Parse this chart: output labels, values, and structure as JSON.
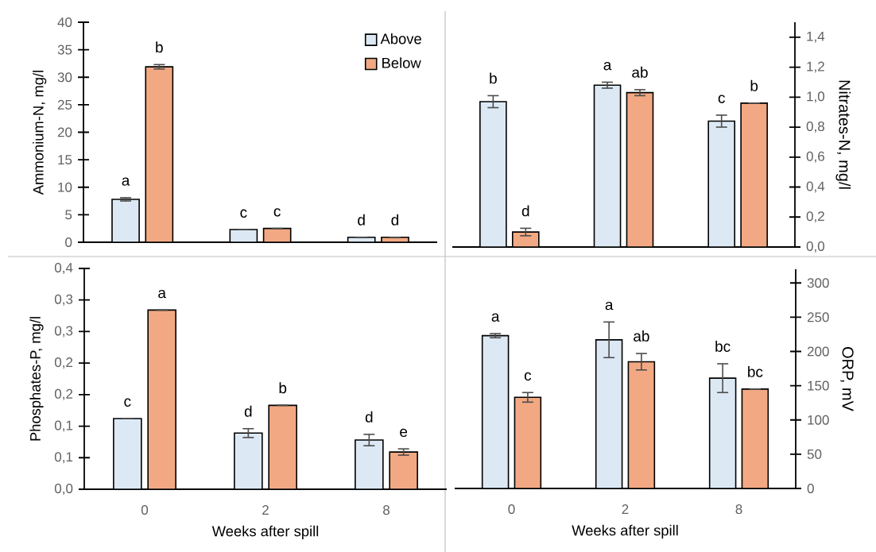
{
  "chart_data": [
    {
      "type": "bar",
      "categories": [
        "0",
        "2",
        "8"
      ],
      "ylabel": "Ammonium-N, mg/l",
      "ylim": [
        0,
        40
      ],
      "yticks": [
        0,
        5,
        10,
        15,
        20,
        25,
        30,
        35,
        40
      ],
      "tick_labels": "y",
      "legend": "top right",
      "series": [
        {
          "name": "Above",
          "color": "#dce9f5",
          "values": [
            7.8,
            2.3,
            0.9
          ],
          "errors": [
            0.3,
            null,
            null
          ],
          "value_labels": [
            "a",
            "c",
            "d"
          ]
        },
        {
          "name": "Below",
          "color": "#f2a983",
          "values": [
            31.9,
            2.5,
            0.9
          ],
          "errors": [
            0.4,
            null,
            null
          ],
          "value_labels": [
            "b",
            "c",
            "d"
          ]
        }
      ]
    },
    {
      "type": "bar",
      "categories": [
        "0",
        "2",
        "8"
      ],
      "y2label": "Nitrates-N, mg/l",
      "y2lim": [
        0,
        1.5
      ],
      "y2ticks": [
        {
          "value": 0,
          "label": "0,0"
        },
        {
          "value": 0.2,
          "label": "0,2"
        },
        {
          "value": 0.4,
          "label": "0,4"
        },
        {
          "value": 0.6,
          "label": "0,6"
        },
        {
          "value": 0.8,
          "label": "0,8"
        },
        {
          "value": 1.0,
          "label": "1,0"
        },
        {
          "value": 1.2,
          "label": "1,2"
        },
        {
          "value": 1.4,
          "label": "1,4"
        }
      ],
      "tick_labels": "y",
      "series": [
        {
          "color": "#dce9f5",
          "axis": "y2",
          "values": [
            0.97,
            1.08,
            0.84
          ],
          "errors": [
            0.04,
            0.02,
            0.04
          ],
          "value_labels": [
            "b",
            "a",
            "c"
          ]
        },
        {
          "color": "#f2a983",
          "axis": "y2",
          "values": [
            0.1,
            1.03,
            0.96
          ],
          "errors": [
            0.025,
            0.02,
            null
          ],
          "value_labels": [
            "d",
            "ab",
            "b"
          ]
        }
      ]
    },
    {
      "type": "bar",
      "categories": [
        "0",
        "2",
        "8"
      ],
      "xlabel": "Weeks after spill",
      "ylabel": "Phosphates-P, mg/l",
      "ylim": [
        0,
        0.35
      ],
      "yticks": [
        {
          "value": 0,
          "label": "0,0"
        },
        {
          "value": 0.05,
          "label": "0,1"
        },
        {
          "value": 0.1,
          "label": "0,1"
        },
        {
          "value": 0.15,
          "label": "0,2"
        },
        {
          "value": 0.2,
          "label": "0,2"
        },
        {
          "value": 0.25,
          "label": "0,3"
        },
        {
          "value": 0.3,
          "label": "0,3"
        },
        {
          "value": 0.35,
          "label": "0,4"
        }
      ],
      "series": [
        {
          "color": "#dce9f5",
          "values": [
            0.112,
            0.089,
            0.078
          ],
          "errors": [
            null,
            0.007,
            0.009
          ],
          "value_labels": [
            "c",
            "d",
            "d"
          ]
        },
        {
          "color": "#f2a983",
          "values": [
            0.284,
            0.133,
            0.059
          ],
          "errors": [
            null,
            null,
            0.005
          ],
          "value_labels": [
            "a",
            "b",
            "e"
          ]
        }
      ]
    },
    {
      "type": "bar",
      "categories": [
        "0",
        "2",
        "8"
      ],
      "xlabel": "Weeks after spill",
      "y2label": "ORP, mV",
      "y2lim": [
        0,
        320
      ],
      "y2ticks": [
        0,
        50,
        100,
        150,
        200,
        250,
        300
      ],
      "series": [
        {
          "color": "#dce9f5",
          "axis": "y2",
          "values": [
            223,
            217,
            161
          ],
          "errors": [
            3,
            26,
            21
          ],
          "value_labels": [
            "a",
            "a",
            "bc"
          ]
        },
        {
          "color": "#f2a983",
          "axis": "y2",
          "values": [
            133,
            185,
            145
          ],
          "errors": [
            7,
            12,
            null
          ],
          "value_labels": [
            "c",
            "ab",
            "bc"
          ]
        }
      ]
    }
  ]
}
